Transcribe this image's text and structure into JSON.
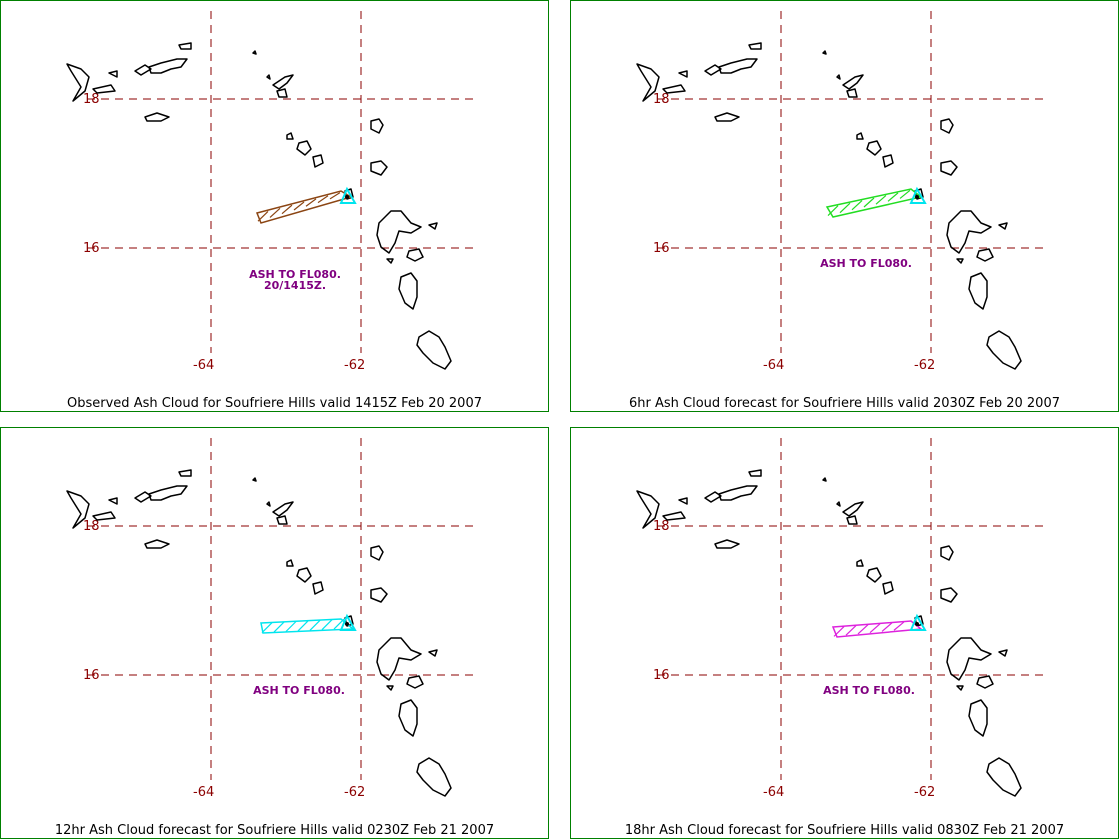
{
  "panels": [
    {
      "caption": "Observed Ash Cloud for Soufriere  Hills valid 1415Z Feb 20 2007",
      "ash_color": "#8B4513",
      "annotation_lines": [
        "ASH TO FL080.",
        "20/1415Z."
      ],
      "lat_labels": [
        "18",
        "16"
      ],
      "lon_labels": [
        "-64",
        "-62"
      ]
    },
    {
      "caption": "6hr Ash Cloud forecast for Soufriere  Hills valid 2030Z Feb 20 2007",
      "ash_color": "#22DD22",
      "annotation_lines": [
        "ASH TO FL080."
      ],
      "lat_labels": [
        "18",
        "16"
      ],
      "lon_labels": [
        "-64",
        "-62"
      ]
    },
    {
      "caption": "12hr Ash Cloud forecast for Soufriere  Hills valid 0230Z Feb 21 2007",
      "ash_color": "#00E5EE",
      "annotation_lines": [
        "ASH TO FL080."
      ],
      "lat_labels": [
        "18",
        "16"
      ],
      "lon_labels": [
        "-64",
        "-62"
      ]
    },
    {
      "caption": "18hr Ash Cloud forecast for Soufriere  Hills valid 0830Z Feb 21 2007",
      "ash_color": "#DD22DD",
      "annotation_lines": [
        "ASH TO FL080."
      ],
      "lat_labels": [
        "18",
        "16"
      ],
      "lon_labels": [
        "-64",
        "-62"
      ]
    }
  ],
  "colors": {
    "grid": "#8B0000",
    "coast": "#000000",
    "volcano_marker": "#00E5EE",
    "annotation": "#800080",
    "border": "#008000"
  },
  "icons": {
    "volcano": "volcano-triangle-icon"
  }
}
